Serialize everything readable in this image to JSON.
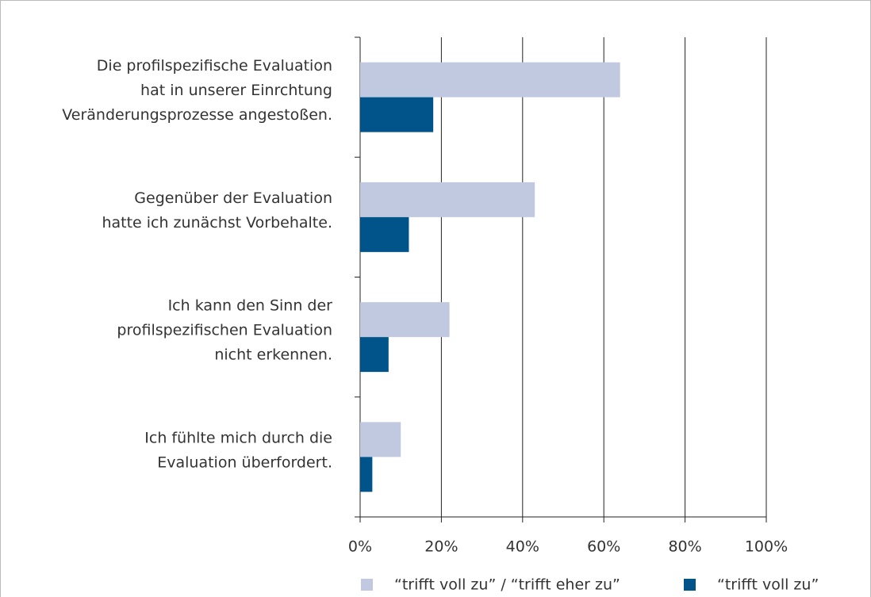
{
  "chart_data": {
    "type": "bar",
    "orientation": "horizontal",
    "categories": [
      [
        "Die profilspezifische Evaluation",
        "hat in unserer Einrchtung",
        "Veränderungsprozesse angestoßen."
      ],
      [
        "Gegenüber der Evaluation",
        "hatte ich zunächst Vorbehalte."
      ],
      [
        "Ich kann den Sinn der",
        "profilspezifischen Evaluation",
        "nicht erkennen."
      ],
      [
        "Ich fühlte mich durch die",
        "Evaluation überfordert."
      ]
    ],
    "series": [
      {
        "name": "“trifft voll zu” / “trifft eher zu”",
        "color": "#c0c9df",
        "values": [
          64,
          43,
          22,
          10
        ]
      },
      {
        "name": "“trifft voll zu”",
        "color": "#00548a",
        "values": [
          18,
          12,
          7,
          3
        ]
      }
    ],
    "xlim": [
      0,
      100
    ],
    "xticks": [
      {
        "value": 0,
        "label": "0%"
      },
      {
        "value": 20,
        "label": "20%"
      },
      {
        "value": 40,
        "label": "40%"
      },
      {
        "value": 60,
        "label": "60%"
      },
      {
        "value": 80,
        "label": "80%"
      },
      {
        "value": 100,
        "label": "100%"
      }
    ],
    "grid": true,
    "legend": "bottom"
  }
}
